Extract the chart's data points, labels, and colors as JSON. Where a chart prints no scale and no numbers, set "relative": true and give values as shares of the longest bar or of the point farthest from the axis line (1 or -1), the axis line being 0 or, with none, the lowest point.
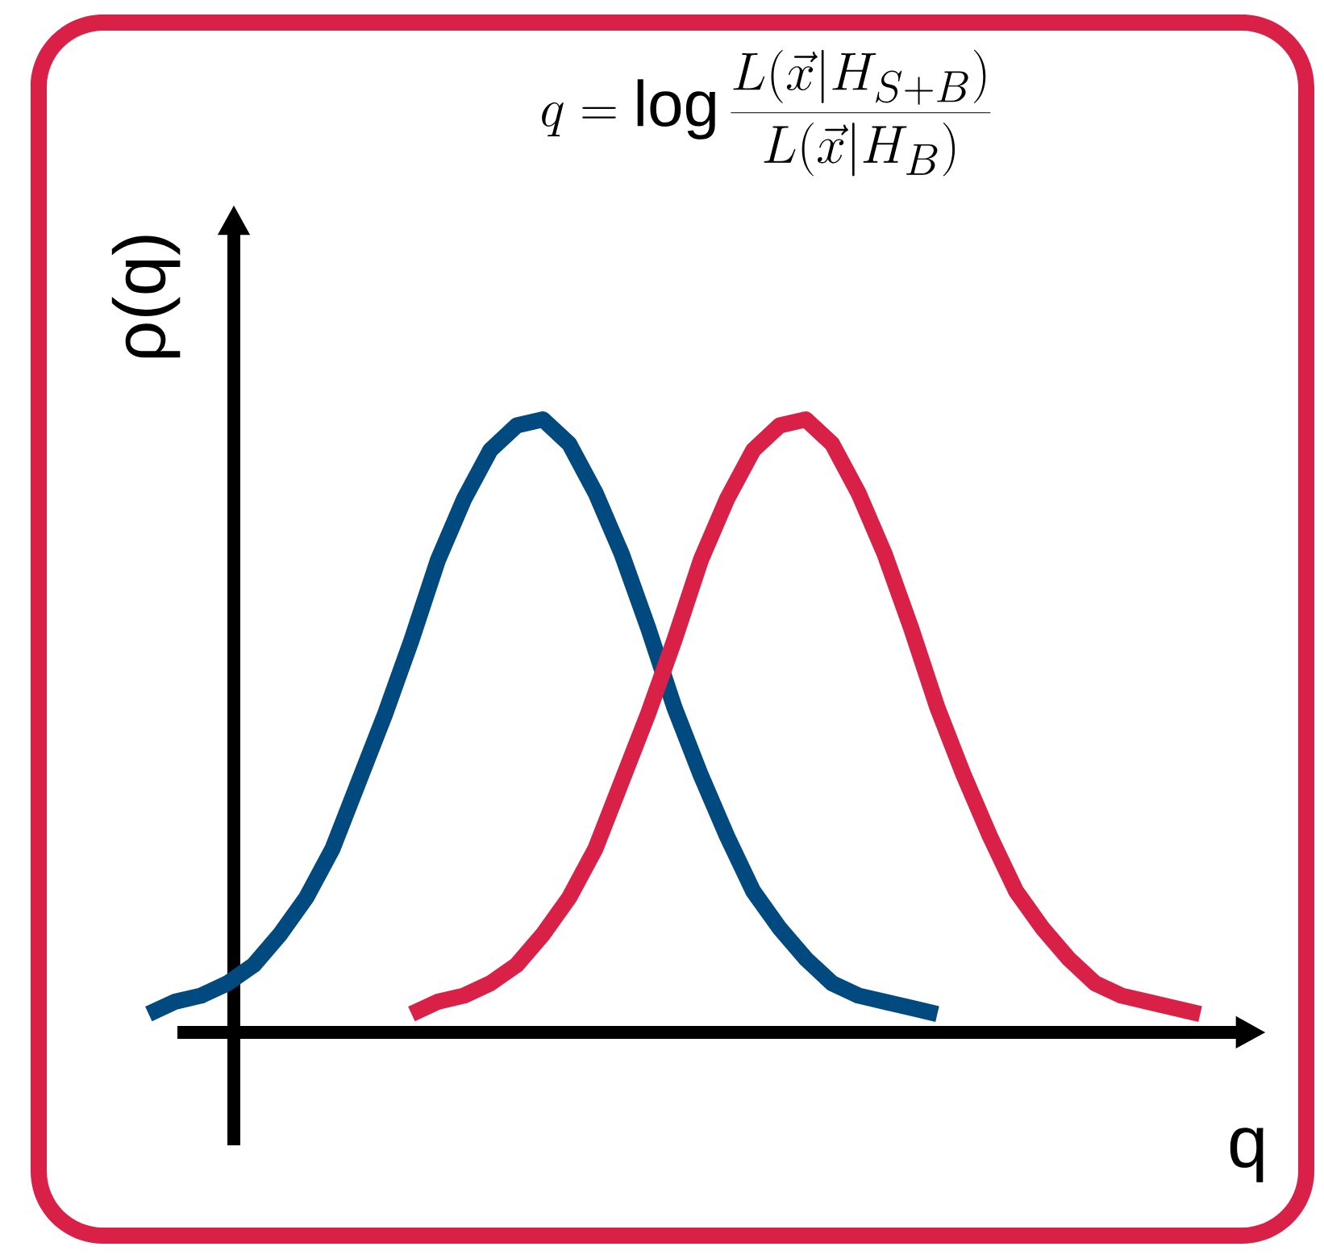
{
  "chart_data": {
    "type": "line",
    "relative": true,
    "title": "q = \\log \\frac{L(\\vec{x}|H_{S+B})}{L(\\vec{x}|H_B)}",
    "xlabel": "q",
    "ylabel": "ρ(q)",
    "categories": [
      null,
      null,
      null,
      null,
      null,
      null,
      null,
      null,
      null,
      null,
      null,
      null,
      null,
      null,
      null,
      null,
      null,
      null,
      null,
      null,
      null,
      null,
      null,
      null,
      null,
      null,
      null,
      null,
      null,
      null,
      null,
      null,
      null,
      null,
      null,
      null,
      null,
      null,
      null,
      null,
      null
    ],
    "series": [
      {
        "color": "#004a80",
        "values": [
          0.03,
          0.05,
          0.06,
          0.08,
          0.11,
          0.16,
          0.22,
          0.3,
          0.41,
          0.52,
          0.64,
          0.77,
          0.87,
          0.95,
          0.99,
          1,
          0.96,
          0.88,
          0.78,
          0.66,
          0.53,
          0.42,
          0.32,
          0.23,
          0.17,
          0.12,
          0.08,
          0.06,
          0.05,
          0.04,
          0.03,
          null,
          null,
          null,
          null,
          null,
          null,
          null,
          null,
          null,
          null
        ]
      },
      {
        "color": "#d92148",
        "values": [
          null,
          null,
          null,
          null,
          null,
          null,
          null,
          null,
          null,
          null,
          0.03,
          0.05,
          0.06,
          0.08,
          0.11,
          0.16,
          0.22,
          0.3,
          0.41,
          0.52,
          0.64,
          0.77,
          0.87,
          0.95,
          0.99,
          1,
          0.96,
          0.88,
          0.78,
          0.66,
          0.53,
          0.42,
          0.32,
          0.23,
          0.17,
          0.12,
          0.08,
          0.06,
          0.05,
          0.04,
          0.03
        ]
      }
    ]
  }
}
